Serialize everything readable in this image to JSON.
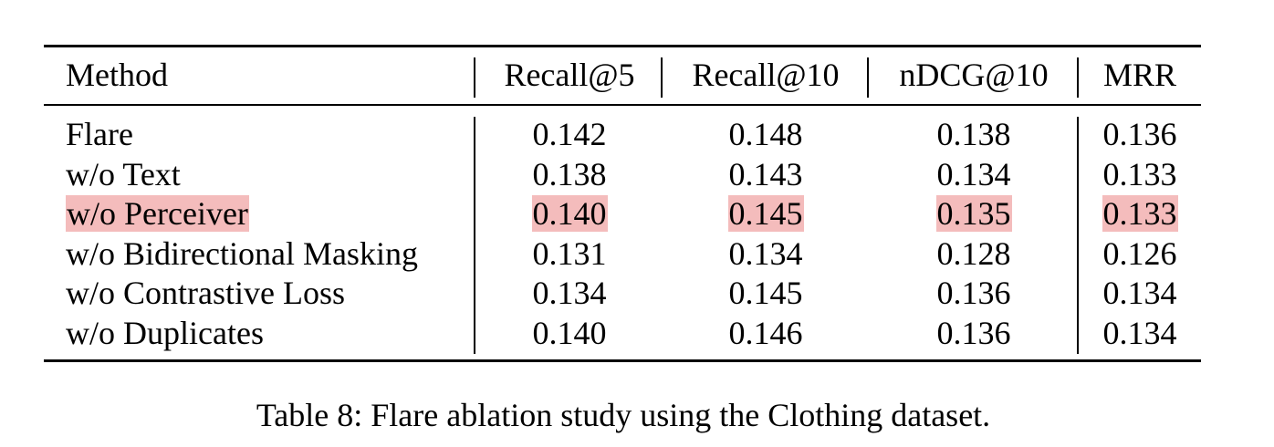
{
  "table": {
    "headers": [
      "Method",
      "Recall@5",
      "Recall@10",
      "nDCG@10",
      "MRR"
    ],
    "rows": [
      {
        "method": "Flare",
        "values": [
          "0.142",
          "0.148",
          "0.138",
          "0.136"
        ],
        "highlight": false
      },
      {
        "method": "w/o Text",
        "values": [
          "0.138",
          "0.143",
          "0.134",
          "0.133"
        ],
        "highlight": false
      },
      {
        "method": "w/o Perceiver",
        "values": [
          "0.140",
          "0.145",
          "0.135",
          "0.133"
        ],
        "highlight": true
      },
      {
        "method": "w/o Bidirectional Masking",
        "values": [
          "0.131",
          "0.134",
          "0.128",
          "0.126"
        ],
        "highlight": false
      },
      {
        "method": "w/o Contrastive Loss",
        "values": [
          "0.134",
          "0.145",
          "0.136",
          "0.134"
        ],
        "highlight": false
      },
      {
        "method": "w/o Duplicates",
        "values": [
          "0.140",
          "0.146",
          "0.136",
          "0.134"
        ],
        "highlight": false
      }
    ],
    "highlight_color": "#f4bcbc"
  },
  "caption": "Table 8: Flare ablation study using the Clothing dataset."
}
